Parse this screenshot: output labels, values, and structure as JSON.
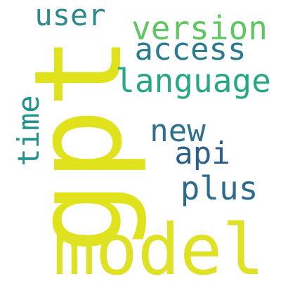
{
  "word_cloud": {
    "words": {
      "gpt": {
        "text": "gpt",
        "color": "#e0e21b"
      },
      "model": {
        "text": "model",
        "color": "#dfe125"
      },
      "version": {
        "text": "version",
        "color": "#5fc760"
      },
      "access": {
        "text": "access",
        "color": "#2a7b8e"
      },
      "language": {
        "text": "language",
        "color": "#26a883"
      },
      "user": {
        "text": "user",
        "color": "#2d8a8c"
      },
      "new": {
        "text": "new",
        "color": "#2f6f8f"
      },
      "api": {
        "text": "api",
        "color": "#2e5e8c"
      },
      "plus": {
        "text": "plus",
        "color": "#2c6b8e"
      },
      "time": {
        "text": "time",
        "color": "#21918c"
      }
    }
  }
}
